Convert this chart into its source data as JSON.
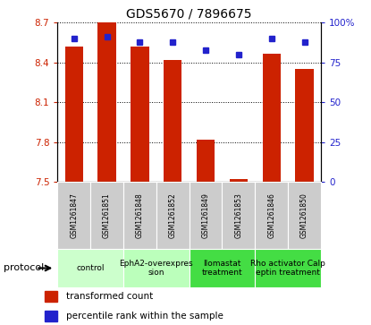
{
  "title": "GDS5670 / 7896675",
  "samples": [
    "GSM1261847",
    "GSM1261851",
    "GSM1261848",
    "GSM1261852",
    "GSM1261849",
    "GSM1261853",
    "GSM1261846",
    "GSM1261850"
  ],
  "transformed_counts": [
    8.52,
    8.7,
    8.52,
    8.42,
    7.82,
    7.52,
    8.47,
    8.35
  ],
  "percentile_ranks": [
    90,
    91,
    88,
    88,
    83,
    80,
    90,
    88
  ],
  "y_min": 7.5,
  "y_max": 8.7,
  "y_ticks": [
    7.5,
    7.8,
    8.1,
    8.4,
    8.7
  ],
  "y2_ticks": [
    0,
    25,
    50,
    75,
    100
  ],
  "bar_color": "#cc2200",
  "dot_color": "#2222cc",
  "protocols": [
    {
      "label": "control",
      "spans": [
        0,
        2
      ],
      "color": "#ccffcc"
    },
    {
      "label": "EphA2-overexpres\nsion",
      "spans": [
        2,
        4
      ],
      "color": "#bbffbb"
    },
    {
      "label": "Ilomastat\ntreatment",
      "spans": [
        4,
        6
      ],
      "color": "#44dd44"
    },
    {
      "label": "Rho activator Calp\neptin treatment",
      "spans": [
        6,
        8
      ],
      "color": "#44dd44"
    }
  ],
  "protocol_label": "protocol",
  "legend_bar_label": "transformed count",
  "legend_dot_label": "percentile rank within the sample",
  "bar_width": 0.55,
  "tick_label_color_left": "#cc2200",
  "tick_label_color_right": "#2222cc"
}
